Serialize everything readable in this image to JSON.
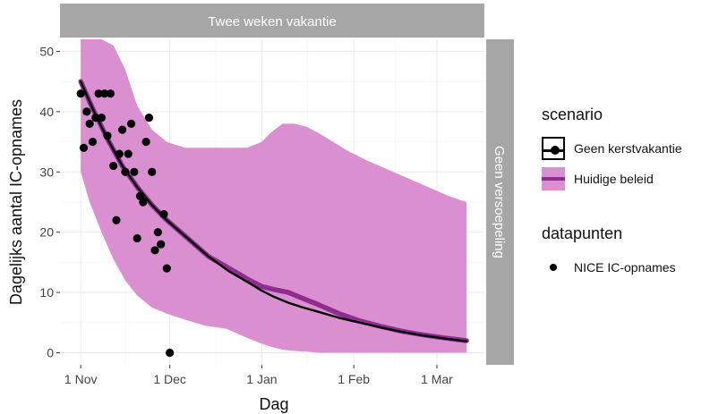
{
  "chart_data": {
    "type": "line",
    "facet_top_label": "Twee weken vakantie",
    "facet_right_label": "Geen versoepeling",
    "xlabel": "Dag",
    "ylabel": "Dagelijks aantal IC-opnames",
    "ylim": [
      -2,
      52
    ],
    "y_ticks": [
      0,
      10,
      20,
      30,
      40,
      50
    ],
    "x_ticks": [
      {
        "label": "1 Nov",
        "date": "2020-11-01"
      },
      {
        "label": "1 Dec",
        "date": "2020-12-01"
      },
      {
        "label": "1 Jan",
        "date": "2021-01-01"
      },
      {
        "label": "1 Feb",
        "date": "2021-02-01"
      },
      {
        "label": "1 Mar",
        "date": "2021-03-01"
      }
    ],
    "xlim": [
      "2020-10-25",
      "2021-03-17"
    ],
    "grid": true,
    "legend": {
      "position": "right",
      "scenario_title": "scenario",
      "datapunten_title": "datapunten",
      "items": [
        "Geen kerstvakantie",
        "Huidige beleid"
      ],
      "points_label": "NICE IC-opnames"
    },
    "colors": {
      "band": "#d98fd0",
      "huidige_line": "#8e2d8f",
      "geen_line": "#000000",
      "points": "#000000",
      "strip": "#a6a6a6",
      "panel": "#ffffff",
      "grid": "#ebebeb"
    },
    "band": {
      "x": [
        "2020-11-01",
        "2020-11-04",
        "2020-11-08",
        "2020-11-12",
        "2020-11-16",
        "2020-11-20",
        "2020-11-25",
        "2020-11-30",
        "2020-12-06",
        "2020-12-13",
        "2020-12-20",
        "2020-12-27",
        "2021-01-01",
        "2021-01-04",
        "2021-01-08",
        "2021-01-12",
        "2021-01-16",
        "2021-01-20",
        "2021-01-25",
        "2021-01-30",
        "2021-02-05",
        "2021-02-12",
        "2021-02-19",
        "2021-02-26",
        "2021-03-05",
        "2021-03-11"
      ],
      "upper": [
        53,
        53,
        52.5,
        51,
        47,
        41,
        37,
        35,
        34,
        34,
        34,
        34,
        35,
        36.5,
        38,
        38,
        37.5,
        36.5,
        35,
        33.5,
        32,
        30.5,
        29,
        27.5,
        26,
        25
      ],
      "lower": [
        30,
        25,
        20,
        15.5,
        12,
        9.5,
        7.5,
        6.5,
        5.5,
        4.5,
        4,
        2.5,
        1.5,
        1,
        0.5,
        0.3,
        0.2,
        0,
        0,
        0,
        0,
        0,
        0,
        0,
        0,
        0
      ]
    },
    "series": [
      {
        "name": "Huidige beleid",
        "x": [
          "2020-11-01",
          "2020-11-05",
          "2020-11-10",
          "2020-11-15",
          "2020-11-20",
          "2020-11-25",
          "2020-11-30",
          "2020-12-07",
          "2020-12-14",
          "2020-12-21",
          "2020-12-28",
          "2021-01-01",
          "2021-01-05",
          "2021-01-10",
          "2021-01-15",
          "2021-01-20",
          "2021-01-27",
          "2021-02-03",
          "2021-02-10",
          "2021-02-17",
          "2021-02-24",
          "2021-03-03",
          "2021-03-11"
        ],
        "values": [
          45,
          40.5,
          35.5,
          31,
          27.5,
          24.5,
          22,
          19,
          16,
          14,
          12,
          11,
          10.5,
          10,
          9,
          8,
          6.5,
          5.3,
          4.4,
          3.6,
          3,
          2.5,
          2
        ]
      },
      {
        "name": "Geen kerstvakantie",
        "x": [
          "2020-11-01",
          "2020-11-05",
          "2020-11-10",
          "2020-11-15",
          "2020-11-20",
          "2020-11-25",
          "2020-11-30",
          "2020-12-07",
          "2020-12-14",
          "2020-12-21",
          "2020-12-28",
          "2021-01-01",
          "2021-01-05",
          "2021-01-10",
          "2021-01-15",
          "2021-01-20",
          "2021-01-27",
          "2021-02-03",
          "2021-02-10",
          "2021-02-17",
          "2021-02-24",
          "2021-03-03",
          "2021-03-11"
        ],
        "values": [
          45,
          40.5,
          35.5,
          31,
          27.5,
          24.5,
          22,
          19,
          16,
          13.5,
          11.5,
          10.3,
          9.3,
          8.3,
          7.5,
          6.8,
          5.8,
          5,
          4.2,
          3.5,
          2.9,
          2.4,
          1.9
        ]
      }
    ],
    "points": {
      "name": "NICE IC-opnames",
      "x": [
        "2020-11-01",
        "2020-11-02",
        "2020-11-03",
        "2020-11-04",
        "2020-11-05",
        "2020-11-06",
        "2020-11-07",
        "2020-11-08",
        "2020-11-09",
        "2020-11-10",
        "2020-11-11",
        "2020-11-12",
        "2020-11-13",
        "2020-11-14",
        "2020-11-15",
        "2020-11-16",
        "2020-11-17",
        "2020-11-18",
        "2020-11-19",
        "2020-11-20",
        "2020-11-21",
        "2020-11-22",
        "2020-11-23",
        "2020-11-24",
        "2020-11-25",
        "2020-11-26",
        "2020-11-27",
        "2020-11-28",
        "2020-11-29",
        "2020-11-30",
        "2020-12-01"
      ],
      "values": [
        43,
        34,
        40,
        38,
        35,
        39,
        43,
        39,
        43,
        36,
        43,
        31,
        22,
        33,
        37,
        30,
        33,
        38,
        30,
        19,
        26,
        25,
        35,
        39,
        30,
        17,
        20,
        18,
        23,
        14,
        0
      ]
    }
  }
}
